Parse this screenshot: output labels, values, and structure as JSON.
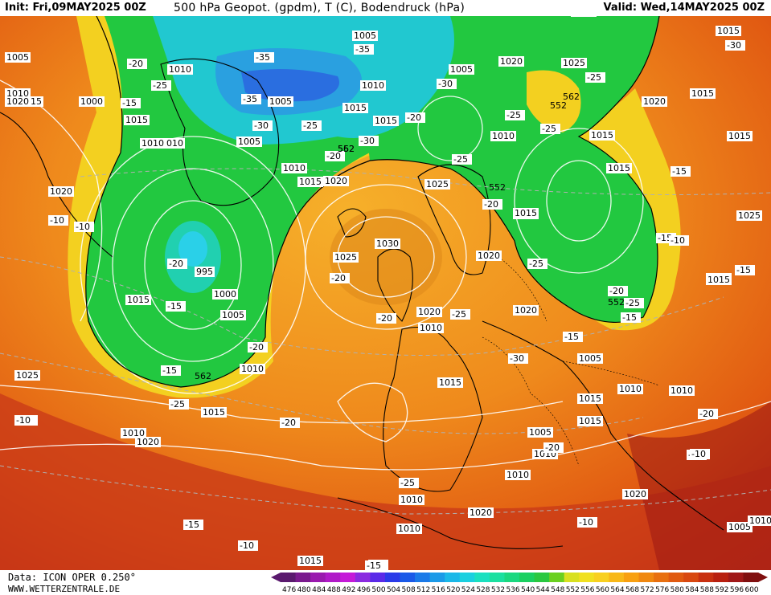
{
  "header": {
    "init": "Init: Fri,09MAY2025 00Z",
    "title": "500 hPa Geopot. (gpdm), T (C), Bodendruck (hPa)",
    "valid": "Valid: Wed,14MAY2025 00Z"
  },
  "footer": {
    "data_source": "Data: ICON OPER 0.250°",
    "website": "WWW.WETTERZENTRALE.DE"
  },
  "legend": {
    "values": [
      "476",
      "480",
      "484",
      "488",
      "492",
      "496",
      "500",
      "504",
      "508",
      "512",
      "516",
      "520",
      "524",
      "528",
      "532",
      "536",
      "540",
      "544",
      "548",
      "552",
      "556",
      "560",
      "564",
      "568",
      "572",
      "576",
      "580",
      "584",
      "588",
      "592",
      "596",
      "600"
    ],
    "colors": [
      "#5a1a6e",
      "#7a1a8e",
      "#9a1aae",
      "#b01ac8",
      "#c41ad8",
      "#8a2ae0",
      "#5a2ae8",
      "#2a3ae8",
      "#1a5ae8",
      "#1a7ae8",
      "#1a9ae8",
      "#1ab8e8",
      "#1ad0e0",
      "#1ae0c0",
      "#1ae0a0",
      "#1ad880",
      "#1ad060",
      "#2ac840",
      "#6ad020",
      "#d8e020",
      "#f0e020",
      "#f8d020",
      "#f8b818",
      "#f8a010",
      "#f08810",
      "#e87010",
      "#e05a10",
      "#d84810",
      "#c83010",
      "#b82010",
      "#a01818",
      "#801010"
    ]
  },
  "map_labels": {
    "pressure": [
      "1005",
      "1010",
      "1005",
      "1025",
      "1015",
      "1000",
      "1010",
      "1005",
      "1010",
      "1015",
      "1010",
      "1015",
      "1020",
      "1010",
      "1005",
      "1015",
      "1010",
      "1005",
      "1020",
      "1025",
      "1020",
      "1015",
      "1025",
      "1030",
      "1025",
      "1000",
      "995",
      "1015",
      "1005",
      "1010",
      "1015",
      "1025",
      "1010",
      "1015",
      "1020",
      "1020",
      "1020",
      "1015",
      "1025",
      "1020",
      "1015",
      "1005",
      "1010",
      "1015",
      "1015",
      "1020",
      "1015",
      "1010",
      "1015",
      "1010",
      "1005",
      "1005",
      "1010",
      "1010",
      "1015",
      "1010",
      "1020",
      "1020",
      "1015",
      "1010",
      "1005",
      "1010",
      "1015",
      "1010",
      "1015",
      "1015",
      "1020"
    ],
    "temperature": [
      "-35",
      "-35",
      "-30",
      "-25",
      "-20",
      "-25",
      "-35",
      "-30",
      "-25",
      "-20",
      "-25",
      "-15",
      "-30",
      "-25",
      "-25",
      "-30",
      "-20",
      "-25",
      "-20",
      "-20",
      "-20",
      "-15",
      "-15",
      "-20",
      "-15",
      "-25",
      "-20",
      "-25",
      "-15",
      "-30",
      "-25",
      "-25",
      "-20",
      "-20",
      "-20",
      "-20",
      "-20",
      "-15",
      "-10",
      "-15",
      "-15",
      "-10",
      "-15",
      "-10",
      "-10",
      "-10",
      "-15",
      "-20",
      "-10",
      "-10",
      "-15"
    ],
    "heights": [
      "562",
      "552",
      "562",
      "552",
      "552",
      "562",
      "552"
    ]
  }
}
